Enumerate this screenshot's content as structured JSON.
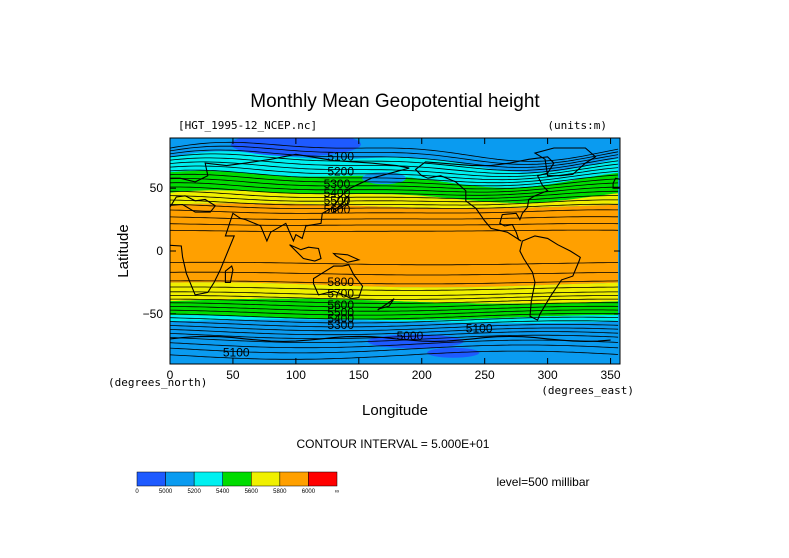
{
  "chart_data": {
    "type": "heatmap",
    "title": "Monthly Mean Geopotential height",
    "file_label": "[HGT_1995-12_NCEP.nc]",
    "units_label": "(units:m)",
    "xlabel": "Longitude",
    "ylabel": "Latitude",
    "x_units_label": "(degrees_east)",
    "y_units_label": "(degrees_north)",
    "xlim": [
      0,
      357.5
    ],
    "ylim": [
      -90,
      90
    ],
    "x_ticks": [
      0,
      50,
      100,
      150,
      200,
      250,
      300,
      350
    ],
    "y_ticks": [
      50,
      0,
      -50
    ],
    "y_tick_labels": [
      "50",
      "0",
      "−50"
    ],
    "contour_interval_text": "CONTOUR INTERVAL = 5.000E+01",
    "level_text": "level=500 millibar",
    "contour_labels": [
      {
        "text": "5100",
        "lon": 125,
        "lat": 72
      },
      {
        "text": "5200",
        "lon": 125,
        "lat": 60
      },
      {
        "text": "5300",
        "lon": 122,
        "lat": 50
      },
      {
        "text": "5400",
        "lon": 122,
        "lat": 43
      },
      {
        "text": "5500",
        "lon": 122,
        "lat": 37
      },
      {
        "text": "5600",
        "lon": 122,
        "lat": 30
      },
      {
        "text": "5800",
        "lon": 125,
        "lat": -28
      },
      {
        "text": "5700",
        "lon": 125,
        "lat": -37
      },
      {
        "text": "5600",
        "lon": 125,
        "lat": -46
      },
      {
        "text": "5500",
        "lon": 125,
        "lat": -52
      },
      {
        "text": "5400",
        "lon": 125,
        "lat": -57
      },
      {
        "text": "5300",
        "lon": 125,
        "lat": -62
      },
      {
        "text": "5100",
        "lon": 235,
        "lat": -65
      },
      {
        "text": "5000",
        "lon": 180,
        "lat": -71
      },
      {
        "text": "5100",
        "lon": 42,
        "lat": -84
      }
    ],
    "colorbar": {
      "labels": [
        "0",
        "5000",
        "5200",
        "5400",
        "5600",
        "5800",
        "6000",
        "∞"
      ],
      "colors": [
        "#1e5aff",
        "#0a9bf0",
        "#00f0f0",
        "#00dc00",
        "#f0f000",
        "#ffa000",
        "#ff0000"
      ]
    },
    "bands": [
      {
        "name": "deep-blue",
        "color": "#1e5aff"
      },
      {
        "name": "blue",
        "color": "#0a9bf0"
      },
      {
        "name": "cyan",
        "color": "#00f0f0"
      },
      {
        "name": "green",
        "color": "#00dc00"
      },
      {
        "name": "yellow",
        "color": "#f0f000"
      },
      {
        "name": "orange",
        "color": "#ffa000"
      }
    ],
    "grid": false
  }
}
